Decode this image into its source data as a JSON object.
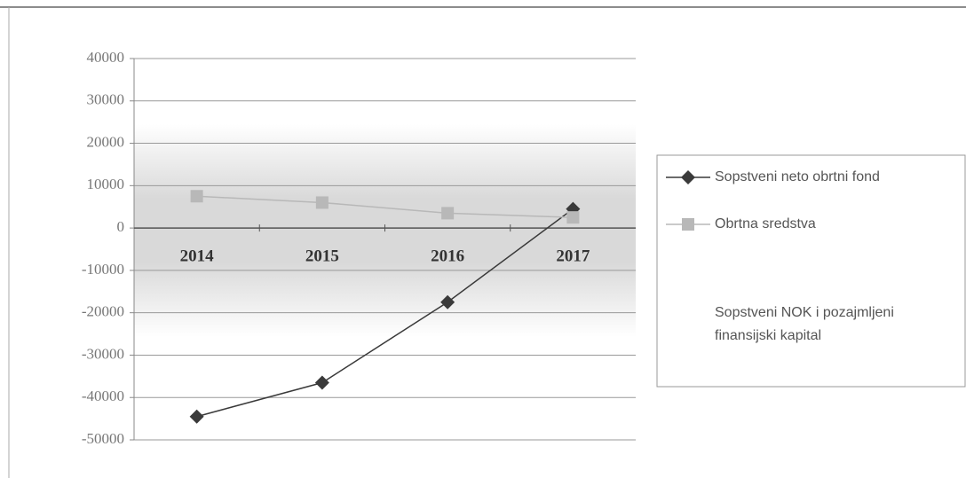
{
  "chart_data": {
    "type": "line",
    "categories": [
      "2014",
      "2015",
      "2016",
      "2017"
    ],
    "series": [
      {
        "name": "Sopstveni neto obrtni fond",
        "color": "#3a3a3a",
        "marker": "diamond",
        "values": [
          -44500,
          -36500,
          -17500,
          4500
        ]
      },
      {
        "name": "Obrtna sredstva",
        "color": "#b8b8b8",
        "marker": "square",
        "values": [
          7500,
          6000,
          3500,
          2500
        ]
      },
      {
        "name": "Sopstveni NOK i pozajmljeni finansijski kapital",
        "values": [
          null,
          null,
          null,
          null
        ]
      }
    ],
    "ylim": [
      -50000,
      40000
    ],
    "yticks": [
      -50000,
      -40000,
      -30000,
      -20000,
      -10000,
      0,
      10000,
      20000,
      30000,
      40000
    ],
    "grid": true,
    "legend": "right"
  }
}
